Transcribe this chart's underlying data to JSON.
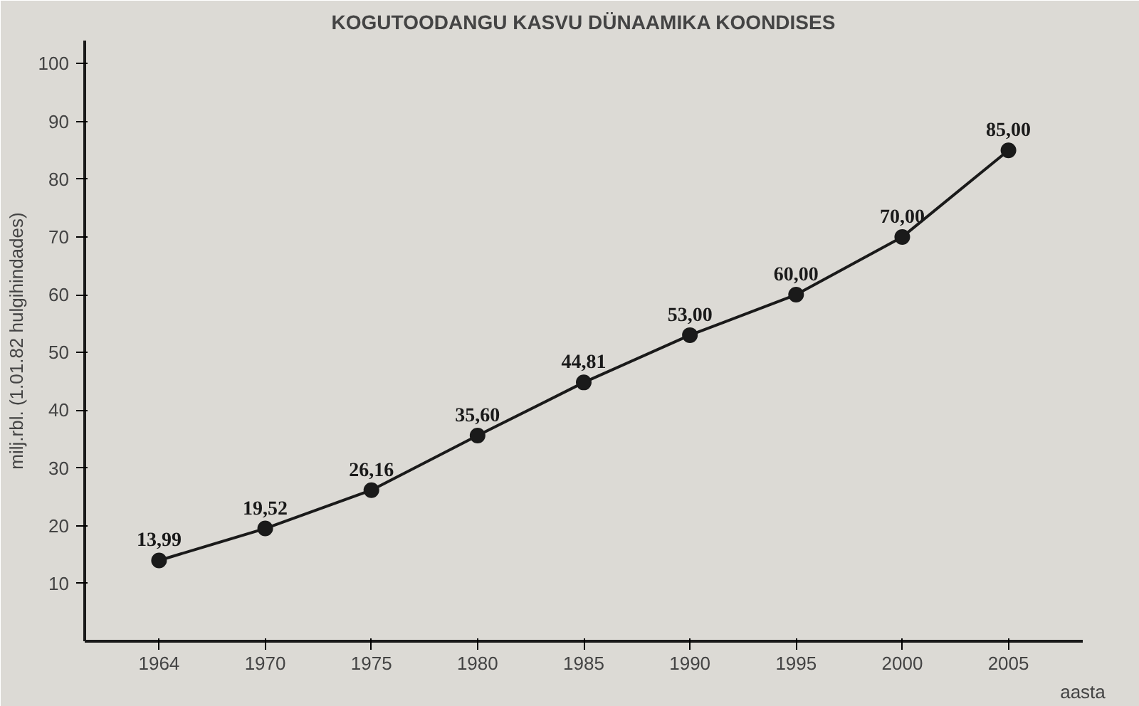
{
  "chart_data": {
    "type": "line",
    "title": "KOGUTOODANGU KASVU DÜNAAMIKA KOONDISES",
    "xlabel": "aasta",
    "ylabel": "milj.rbl. (1.01.82 hulgihindades)",
    "categories": [
      "1964",
      "1970",
      "1975",
      "1980",
      "1985",
      "1990",
      "1995",
      "2000",
      "2005"
    ],
    "series": [
      {
        "color": "#1a1a1a",
        "values": [
          13.99,
          19.52,
          26.16,
          35.6,
          44.81,
          53.0,
          60.0,
          70.0,
          85.0
        ],
        "value_labels": [
          "13,99",
          "19,52",
          "26,16",
          "35,60",
          "44,81",
          "53,00",
          "60,00",
          "70,00",
          "85,00"
        ]
      }
    ],
    "ylim": [
      0,
      104
    ],
    "yticks": [
      10,
      20,
      30,
      40,
      50,
      60,
      70,
      80,
      90,
      100
    ],
    "grid": false,
    "marker": "circle",
    "line_style": "solid"
  }
}
